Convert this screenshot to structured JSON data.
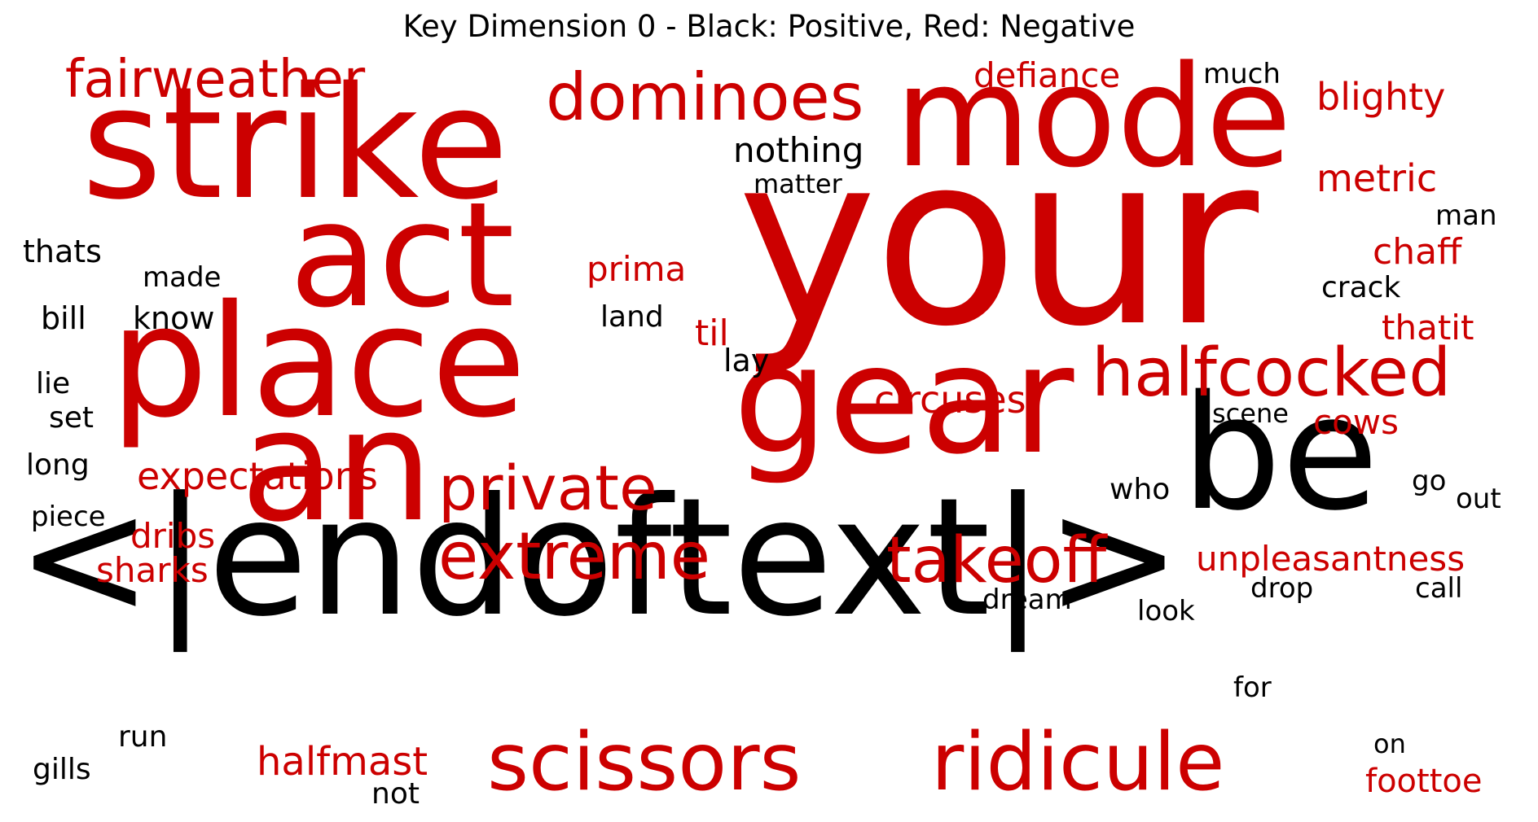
{
  "title": "Key Dimension 0 - Black: Positive, Red: Negative",
  "colors": {
    "positive": "#000000",
    "negative": "#cc0000"
  },
  "words": {
    "endoftext": "<|endoftext|>",
    "your": "your",
    "strike": "strike",
    "mode": "mode",
    "act": "act",
    "place": "place",
    "gear": "gear",
    "be": "be",
    "an": "an",
    "scissors": "scissors",
    "ridicule": "ridicule",
    "halfcocked": "halfcocked",
    "dominoes": "dominoes",
    "fairweather": "fairweather",
    "private": "private",
    "extreme": "extreme",
    "takeoff": "takeoff",
    "halfmast": "halfmast",
    "circuses": "circuses",
    "unpleasantness": "unpleasantness",
    "expectations": "expectations",
    "defiance": "defiance",
    "blighty": "blighty",
    "metric": "metric",
    "chaff": "chaff",
    "thatit": "thatit",
    "cows": "cows",
    "foottoe": "foottoe",
    "prima": "prima",
    "til": "til",
    "dribs": "dribs",
    "sharks": "sharks",
    "nothing": "nothing",
    "matter": "matter",
    "much": "much",
    "man": "man",
    "crack": "crack",
    "thats": "thats",
    "made": "made",
    "bill": "bill",
    "know": "know",
    "land": "land",
    "lay": "lay",
    "lie": "lie",
    "set": "set",
    "long": "long",
    "piece": "piece",
    "scene": "scene",
    "who": "who",
    "go": "go",
    "out": "out",
    "dream": "dream",
    "drop": "drop",
    "call": "call",
    "look": "look",
    "for": "for",
    "run": "run",
    "gills": "gills",
    "not": "not",
    "on": "on"
  }
}
